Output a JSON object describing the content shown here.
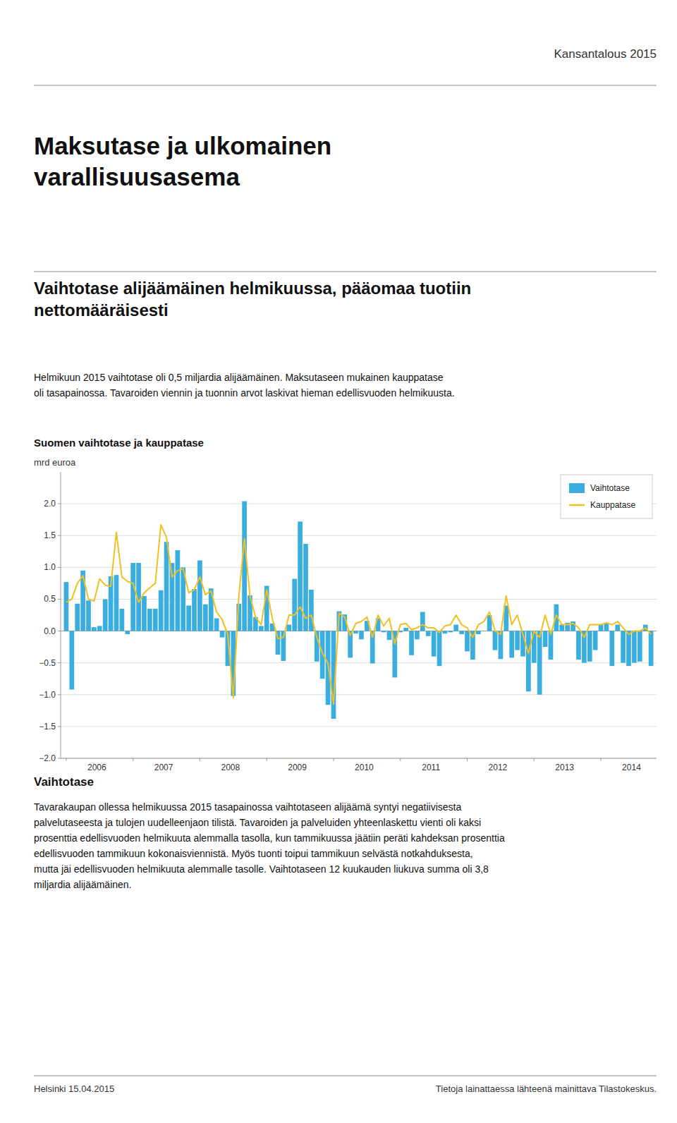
{
  "header_right": "Kansantalous 2015",
  "main_title": "Maksutase ja ulkomainen\nvarallisuusasema",
  "subtitle": "Vaihtotase alijäämäinen helmikuussa, pääomaa tuotiin\nnettomääräisesti",
  "body_text": "Helmikuun 2015 vaihtotase oli 0,5 miljardia alijäämäinen. Maksutaseen mukainen kauppatase\noli tasapainossa. Tavaroiden viennin ja tuonnin arvot laskivat hieman edellisvuoden helmikuusta.",
  "bottom_title": "Vaihtotase",
  "bottom_text": "Tavarakaupan ollessa helmikuussa 2015 tasapainossa vaihtotaseen alijäämä syntyi negatiivisesta\npalvelutaseesta ja tulojen uudelleenjaon tilistä. Tavaroiden ja palveluiden yhteenlaskettu vienti oli kaksi\nprosenttia edellisvuoden helmikuuta alemmalla tasolla, kun tammikuussa jäätiin peräti kahdeksan prosenttia\nedellisvuoden tammikuun kokonaisviennistä. Myös tuonti toipui tammikuun selvästä notkahduksesta,\nmutta jäi edellisvuoden helmikuuta alemmalle tasolle. Vaihtotaseen 12 kuukauden liukuva summa oli 3,8\nmiljardia alijäämäinen.",
  "footer_left": "Helsinki 15.04.2015",
  "footer_right": "Tietoja lainattaessa lähteenä mainittava Tilastokeskus.",
  "chart_data": {
    "type": "bar",
    "title": "Suomen vaihtotase ja kauppatase",
    "y_label": "mrd euroa",
    "categories": [
      "2006",
      null,
      null,
      null,
      null,
      null,
      null,
      null,
      null,
      null,
      null,
      null,
      "2007",
      null,
      null,
      null,
      null,
      null,
      null,
      null,
      null,
      null,
      null,
      null,
      "2008",
      null,
      null,
      null,
      null,
      null,
      null,
      null,
      null,
      null,
      null,
      null,
      "2009",
      null,
      null,
      null,
      null,
      null,
      null,
      null,
      null,
      null,
      null,
      null,
      "2010",
      null,
      null,
      null,
      null,
      null,
      null,
      null,
      null,
      null,
      null,
      null,
      "2011",
      null,
      null,
      null,
      null,
      null,
      null,
      null,
      null,
      null,
      null,
      null,
      "2012",
      null,
      null,
      null,
      null,
      null,
      null,
      null,
      null,
      null,
      null,
      null,
      "2013",
      null,
      null,
      null,
      null,
      null,
      null,
      null,
      null,
      null,
      null,
      null,
      "2014",
      null,
      null,
      null,
      null,
      null,
      null,
      null,
      null,
      null
    ],
    "series": [
      {
        "name": "Vaihtotase",
        "type": "bar",
        "color": "#3BAEE0",
        "values": [
          0.77,
          -0.92,
          0.43,
          0.95,
          0.48,
          0.06,
          0.08,
          0.5,
          0.86,
          0.88,
          0.35,
          -0.05,
          1.07,
          1.07,
          0.55,
          0.35,
          0.35,
          0.64,
          1.4,
          1.07,
          1.27,
          1.0,
          0.4,
          0.66,
          1.11,
          0.42,
          0.67,
          0.2,
          -0.1,
          -0.55,
          -1.02,
          0.43,
          2.04,
          0.56,
          0.22,
          0.08,
          0.71,
          0.12,
          -0.37,
          -0.47,
          0.1,
          0.82,
          1.72,
          1.37,
          0.65,
          -0.48,
          -0.75,
          -1.16,
          -1.38,
          0.31,
          0.26,
          -0.42,
          -0.04,
          -0.13,
          0.16,
          -0.51,
          0.2,
          -0.02,
          -0.14,
          -0.73,
          -0.02,
          0.05,
          -0.38,
          -0.13,
          0.3,
          -0.08,
          -0.4,
          -0.55,
          -0.04,
          -0.02,
          0.1,
          -0.05,
          -0.32,
          -0.45,
          -0.05,
          0.0,
          0.25,
          -0.3,
          -0.44,
          0.4,
          -0.42,
          -0.3,
          -0.4,
          -0.95,
          -0.5,
          -1.0,
          -0.25,
          -0.45,
          0.42,
          0.1,
          0.13,
          0.15,
          -0.45,
          -0.5,
          -0.48,
          -0.3,
          0.1,
          0.12,
          -0.55,
          0.1,
          -0.5,
          -0.55,
          -0.5,
          -0.48,
          0.1,
          -0.55
        ]
      },
      {
        "name": "Kauppatase",
        "type": "line",
        "color": "#F0C020",
        "values": [
          0.45,
          0.5,
          0.75,
          0.87,
          0.5,
          0.47,
          0.82,
          0.72,
          0.7,
          1.55,
          0.85,
          0.78,
          0.75,
          0.45,
          0.6,
          0.68,
          0.75,
          1.67,
          1.47,
          0.85,
          0.95,
          0.98,
          0.6,
          0.65,
          0.85,
          0.57,
          0.63,
          0.3,
          0.18,
          -0.05,
          -1.05,
          0.55,
          1.45,
          0.55,
          0.22,
          0.1,
          0.65,
          0.2,
          -0.12,
          -0.1,
          0.25,
          0.25,
          0.38,
          0.2,
          0.25,
          -0.1,
          -0.35,
          -0.5,
          -1.15,
          0.28,
          0.22,
          -0.07,
          0.12,
          0.15,
          0.22,
          -0.1,
          0.25,
          0.08,
          0.2,
          -0.2,
          0.1,
          0.12,
          0.02,
          0.05,
          0.1,
          0.05,
          0.05,
          -0.02,
          0.08,
          0.1,
          0.25,
          0.1,
          0.05,
          -0.1,
          0.1,
          0.15,
          0.3,
          0.0,
          -0.05,
          0.55,
          0.1,
          0.25,
          -0.05,
          -0.35,
          0.0,
          -0.1,
          0.25,
          -0.05,
          0.25,
          0.1,
          0.1,
          0.12,
          0.05,
          -0.1,
          0.1,
          0.1,
          0.1,
          0.13,
          0.1,
          0.15,
          0.05,
          -0.05,
          0.0,
          0.0,
          0.05,
          -0.05
        ]
      }
    ],
    "ylim": [
      -2.0,
      2.5
    ],
    "yticks": [
      {
        "value": -2.0,
        "label": "−2.0"
      },
      {
        "value": -1.5,
        "label": "−1.5"
      },
      {
        "value": -1.0,
        "label": "−1.0"
      },
      {
        "value": -0.5,
        "label": "−0.5"
      },
      {
        "value": 0.0,
        "label": "0.0"
      },
      {
        "value": 0.5,
        "label": "0.5"
      },
      {
        "value": 1.0,
        "label": "1.0"
      },
      {
        "value": 1.5,
        "label": "1.5"
      },
      {
        "value": 2.0,
        "label": "2.0"
      }
    ],
    "grid": true,
    "legend": "top-right"
  }
}
